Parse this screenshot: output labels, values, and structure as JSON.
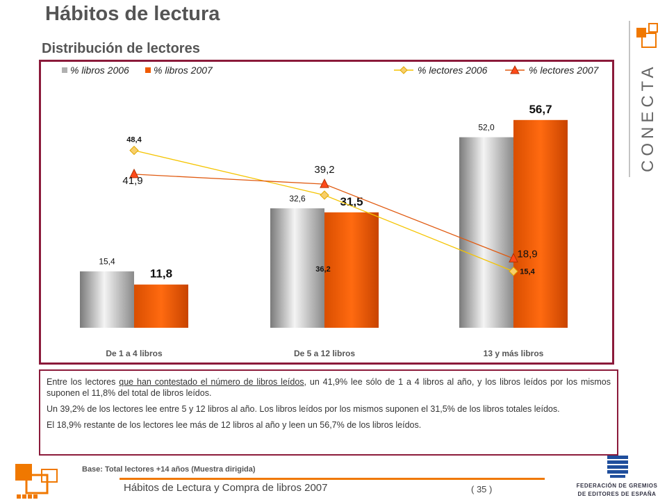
{
  "header": {
    "title": "Hábitos de lectura",
    "subtitle": "Distribución de lectores"
  },
  "chart_data": {
    "type": "bar",
    "categories": [
      "De 1 a 4 libros",
      "De 5 a 12 libros",
      "13 y más libros"
    ],
    "series": [
      {
        "name": "% libros 2006",
        "kind": "bar",
        "values": [
          15.4,
          32.6,
          52.0
        ],
        "labels": [
          "15,4",
          "32,6",
          "52,0"
        ],
        "color": "#a8a8a8"
      },
      {
        "name": "% libros 2007",
        "kind": "bar",
        "values": [
          11.8,
          31.5,
          56.7
        ],
        "labels": [
          "11,8",
          "31,5",
          "56,7"
        ],
        "color": "#f05a00"
      },
      {
        "name": "% lectores 2006",
        "kind": "line",
        "marker": "diamond",
        "values": [
          48.4,
          36.2,
          15.4
        ],
        "labels": [
          "48,4",
          "36,2",
          "15,4"
        ],
        "color": "#f5c400"
      },
      {
        "name": "% lectores 2007",
        "kind": "line",
        "marker": "triangle",
        "values": [
          41.9,
          39.2,
          18.9
        ],
        "labels": [
          "41,9",
          "39,2",
          "18,9"
        ],
        "color": "#e05a10"
      }
    ],
    "ylim": [
      0,
      65
    ],
    "grid": false,
    "legend": "top"
  },
  "commentary": {
    "p1_before": "Entre los lectores ",
    "p1_underlined": "que han contestado el número de libros leídos",
    "p1_after": ", un 41,9% lee sólo de 1 a 4 libros al año, y los libros leídos por los mismos suponen el 11,8% del total de libros leídos.",
    "p2": "Un 39,2% de los lectores lee entre 5 y 12 libros al año. Los libros leídos por los mismos suponen el 31,5% de los libros totales leídos.",
    "p3": "El 18,9% restante de los lectores lee más de 12 libros al año y leen un 56,7% de los libros leídos."
  },
  "footer": {
    "base_note": "Base: Total lectores +14 años (Muestra dirigida)",
    "report_title": "Hábitos de Lectura y Compra de libros 2007",
    "page_number": "( 35 )"
  },
  "brand": {
    "logo_text": "CONECTA",
    "federation_line1": "FEDERACIÓN DE GREMIOS",
    "federation_line2": "DE EDITORES DE ESPAÑA"
  },
  "colors": {
    "accent_orange": "#f07800",
    "frame_maroon": "#8b1a3a"
  }
}
